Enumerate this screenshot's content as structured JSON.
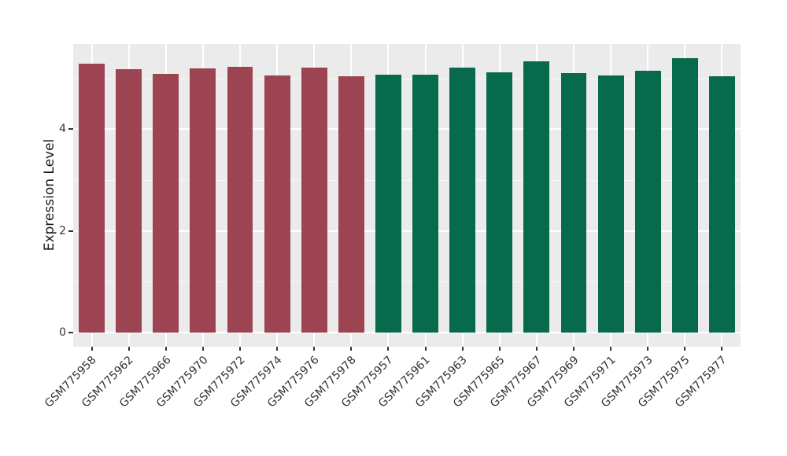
{
  "chart_data": {
    "type": "bar",
    "title": "",
    "xlabel": "",
    "ylabel": "Expression Level",
    "ylim": [
      0,
      5.67
    ],
    "yticks": [
      0,
      2,
      4
    ],
    "yticks_minor": [
      1,
      3,
      5
    ],
    "grid": true,
    "legend": "none",
    "panel_bg": "#EBEBEB",
    "figure_bg": "#FFFFFF",
    "bar_width_fraction": 0.7,
    "x_label_rotation_deg": 45,
    "categories": [
      "GSM775958",
      "GSM775962",
      "GSM775966",
      "GSM775970",
      "GSM775972",
      "GSM775974",
      "GSM775976",
      "GSM775978",
      "GSM775957",
      "GSM775961",
      "GSM775963",
      "GSM775965",
      "GSM775967",
      "GSM775969",
      "GSM775971",
      "GSM775973",
      "GSM775975",
      "GSM775977"
    ],
    "values": [
      5.29,
      5.18,
      5.09,
      5.19,
      5.23,
      5.06,
      5.21,
      5.04,
      5.08,
      5.07,
      5.22,
      5.12,
      5.33,
      5.11,
      5.06,
      5.15,
      5.4,
      5.04
    ],
    "groups": [
      "A",
      "A",
      "A",
      "A",
      "A",
      "A",
      "A",
      "A",
      "B",
      "B",
      "B",
      "B",
      "B",
      "B",
      "B",
      "B",
      "B",
      "B"
    ],
    "group_colors": {
      "A": "#9C4451",
      "B": "#076A4C"
    },
    "axis_text_color": "#333333",
    "gridline_major_color": "#FFFFFF"
  }
}
